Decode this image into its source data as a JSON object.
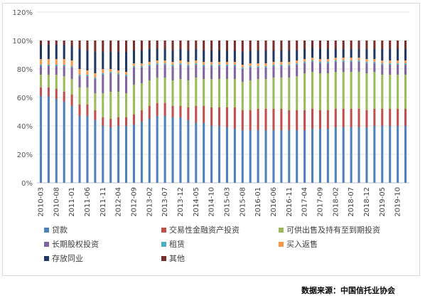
{
  "chart_data": {
    "type": "bar",
    "stacked": true,
    "ylim": [
      0,
      120
    ],
    "y_ticks": [
      "0%",
      "20%",
      "40%",
      "60%",
      "80%",
      "100%",
      "120%"
    ],
    "y_tick_values": [
      0,
      20,
      40,
      60,
      80,
      100,
      120
    ],
    "grid": true,
    "legend_position": "bottom",
    "categories": [
      "2010-03",
      "2010-05",
      "2010-08",
      "2010-10",
      "2011-01",
      "2011-03",
      "2011-06",
      "2011-08",
      "2011-11",
      "2012-01",
      "2012-04",
      "2012-06",
      "2012-09",
      "2012-11",
      "2013-02",
      "2013-04",
      "2013-07",
      "2013-09",
      "2013-12",
      "2014-02",
      "2014-05",
      "2014-07",
      "2014-10",
      "2014-12",
      "2015-03",
      "2015-05",
      "2015-08",
      "2015-10",
      "2016-01",
      "2016-03",
      "2016-06",
      "2016-08",
      "2016-11",
      "2017-01",
      "2017-04",
      "2017-06",
      "2017-09",
      "2017-11",
      "2018-02",
      "2018-04",
      "2018-07",
      "2018-09",
      "2018-12",
      "2019-02",
      "2019-05",
      "2019-07",
      "2019-10",
      "2019-12"
    ],
    "x_tick_labels": [
      "2010-03",
      "2010-08",
      "2011-01",
      "2011-06",
      "2011-11",
      "2012-04",
      "2012-09",
      "2013-02",
      "2013-07",
      "2013-12",
      "2014-05",
      "2014-10",
      "2015-03",
      "2015-08",
      "2016-01",
      "2016-06",
      "2016-11",
      "2017-04",
      "2017-09",
      "2018-02",
      "2018-07",
      "2018-12",
      "2019-05",
      "2019-10"
    ],
    "series": [
      {
        "name": "贷款",
        "color": "#4f81bd",
        "values": [
          61,
          61,
          59,
          57,
          54,
          47,
          47,
          44,
          40,
          39,
          40,
          40,
          41,
          43,
          45,
          47,
          47,
          46,
          46,
          44,
          42,
          42,
          40,
          40,
          39,
          38,
          37,
          37,
          37,
          37,
          37,
          37,
          37,
          37,
          37,
          38,
          38,
          38,
          39,
          39,
          39,
          39,
          39,
          40,
          40,
          40,
          40,
          40
        ]
      },
      {
        "name": "交易性金融资产投资",
        "color": "#c0504d",
        "values": [
          6,
          6,
          7,
          7,
          8,
          8,
          8,
          7,
          6,
          6,
          6,
          6,
          7,
          8,
          9,
          9,
          9,
          8,
          8,
          9,
          12,
          12,
          13,
          13,
          14,
          15,
          14,
          14,
          15,
          15,
          15,
          15,
          14,
          14,
          14,
          14,
          13,
          13,
          13,
          13,
          13,
          13,
          12,
          12,
          12,
          12,
          12,
          12
        ]
      },
      {
        "name": "可供出售及持有至到期投资",
        "color": "#9bbb59",
        "values": [
          9,
          9,
          10,
          11,
          11,
          12,
          12,
          12,
          17,
          19,
          18,
          17,
          21,
          19,
          18,
          18,
          18,
          18,
          19,
          19,
          20,
          19,
          20,
          20,
          20,
          20,
          20,
          21,
          21,
          21,
          22,
          22,
          23,
          24,
          26,
          26,
          26,
          26,
          26,
          26,
          26,
          26,
          26,
          26,
          24,
          24,
          24,
          24
        ]
      },
      {
        "name": "长期股权投资",
        "color": "#8064a2",
        "values": [
          6,
          6,
          6,
          7,
          8,
          8,
          8,
          10,
          13,
          13,
          12,
          12,
          12,
          11,
          10,
          9,
          9,
          10,
          10,
          10,
          9,
          9,
          9,
          9,
          9,
          9,
          9,
          9,
          8,
          8,
          8,
          8,
          8,
          8,
          7,
          7,
          7,
          7,
          7,
          7,
          7,
          7,
          7,
          6,
          7,
          7,
          7,
          7
        ]
      },
      {
        "name": "租赁",
        "color": "#4bacc6",
        "values": [
          1,
          1,
          1,
          1,
          1,
          1,
          1,
          1,
          1,
          1,
          1,
          1,
          1,
          1,
          1,
          1,
          1,
          1,
          1,
          1,
          1,
          1,
          1,
          1,
          1,
          1,
          1,
          1,
          1,
          1,
          1,
          1,
          1,
          1,
          1,
          1,
          1,
          1,
          1,
          1,
          1,
          1,
          1,
          1,
          1,
          1,
          1,
          1
        ]
      },
      {
        "name": "买入返售",
        "color": "#f79646",
        "values": [
          4,
          4,
          4,
          4,
          4,
          4,
          3,
          3,
          3,
          2,
          2,
          2,
          2,
          2,
          2,
          2,
          2,
          2,
          2,
          2,
          2,
          2,
          2,
          2,
          2,
          2,
          2,
          2,
          2,
          2,
          2,
          2,
          2,
          2,
          2,
          2,
          2,
          2,
          2,
          2,
          2,
          2,
          2,
          2,
          2,
          2,
          2,
          2
        ]
      },
      {
        "name": "存放同业",
        "color": "#1f3864",
        "values": [
          10,
          10,
          10,
          10,
          10,
          14,
          14,
          15,
          12,
          12,
          13,
          14,
          9,
          9,
          9,
          8,
          8,
          8,
          8,
          8,
          8,
          8,
          8,
          8,
          8,
          8,
          9,
          9,
          9,
          9,
          8,
          8,
          8,
          7,
          7,
          7,
          7,
          7,
          6,
          6,
          6,
          6,
          7,
          7,
          8,
          8,
          8,
          8
        ]
      },
      {
        "name": "其他",
        "color": "#7b2c2c",
        "values": [
          3,
          3,
          3,
          3,
          4,
          6,
          7,
          8,
          8,
          8,
          8,
          8,
          7,
          7,
          6,
          6,
          6,
          7,
          6,
          7,
          6,
          7,
          7,
          7,
          7,
          7,
          8,
          7,
          7,
          7,
          7,
          7,
          7,
          7,
          6,
          5,
          6,
          6,
          6,
          6,
          6,
          6,
          6,
          6,
          6,
          6,
          6,
          6
        ]
      }
    ]
  },
  "source_note": "数据来源：中国信托业协会"
}
